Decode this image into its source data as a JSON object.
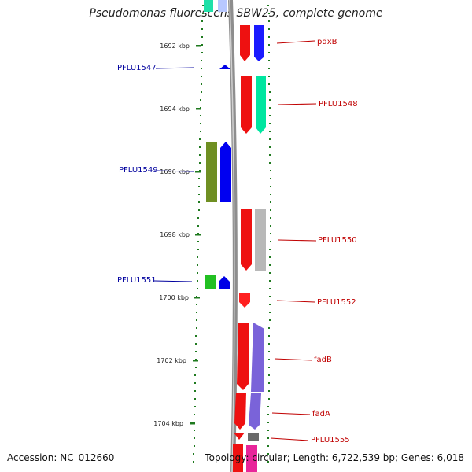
{
  "title": "Pseudomonas fluorescens SBW25, complete genome",
  "footer": {
    "accession": "Accession: NC_012660",
    "topology": "Topology: circular; Length: 6,722,539 bp; Genes: 6,018"
  },
  "colors": {
    "backbone": "#8e8e8e",
    "tick": "#1f7a1f",
    "plus_label": "#c00000",
    "minus_label": "#00009e"
  },
  "scale_labels": [
    "1692 kbp",
    "1694 kbp",
    "1696 kbp",
    "1698 kbp",
    "1700 kbp",
    "1702 kbp",
    "1704 kbp"
  ],
  "genes": [
    {
      "name": "pdxB",
      "strand": "+",
      "color": "#1a1aff"
    },
    {
      "name": "PFLU1547",
      "strand": "-",
      "color": "#0000e6"
    },
    {
      "name": "PFLU1548",
      "strand": "+",
      "color": "#00e6a0"
    },
    {
      "name": "PFLU1549",
      "strand": "-",
      "color": "#0000f0"
    },
    {
      "name": "PFLU1550",
      "strand": "+",
      "color": "#b8b8b8"
    },
    {
      "name": "PFLU1551",
      "strand": "-",
      "color": "#0000e6"
    },
    {
      "name": "PFLU1552",
      "strand": "+",
      "color": "#ff2020"
    },
    {
      "name": "fadB",
      "strand": "+",
      "color": "#7a63d9"
    },
    {
      "name": "fadA",
      "strand": "+",
      "color": "#7a63d9"
    },
    {
      "name": "PFLU1555",
      "strand": "+",
      "color": "#6a6a6a"
    }
  ]
}
